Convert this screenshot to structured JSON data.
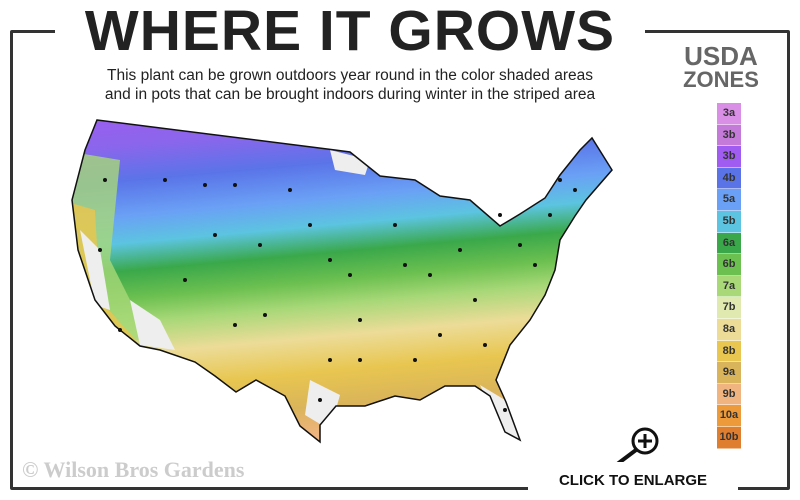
{
  "title": "WHERE IT GROWS",
  "subtitle": {
    "line1": "This plant can be grown outdoors year round in the color shaded areas",
    "line2": "and in pots that can be brought indoors during winter in the striped area"
  },
  "legend": {
    "title_line1": "USDA",
    "title_line2": "ZONES",
    "zones": [
      {
        "label": "3a",
        "color": "#d98fe6"
      },
      {
        "label": "3b",
        "color": "#c47ad8"
      },
      {
        "label": "3b",
        "color": "#a05cf0"
      },
      {
        "label": "4b",
        "color": "#5a74e8"
      },
      {
        "label": "5a",
        "color": "#6aa0f5"
      },
      {
        "label": "5b",
        "color": "#5cc4e0"
      },
      {
        "label": "6a",
        "color": "#3aa84a"
      },
      {
        "label": "6b",
        "color": "#6cc050"
      },
      {
        "label": "7a",
        "color": "#a8d878"
      },
      {
        "label": "7b",
        "color": "#e0eab0"
      },
      {
        "label": "8a",
        "color": "#ecdc98"
      },
      {
        "label": "8b",
        "color": "#e8c650"
      },
      {
        "label": "9a",
        "color": "#dab45a"
      },
      {
        "label": "9b",
        "color": "#f0b480"
      },
      {
        "label": "10a",
        "color": "#ec9a3a"
      },
      {
        "label": "10b",
        "color": "#e07e30"
      }
    ]
  },
  "copyright": "© Wilson Bros Gardens",
  "enlarge_label": "CLICK TO ENLARGE",
  "icons": {
    "enlarge": "magnifier-plus-icon"
  }
}
